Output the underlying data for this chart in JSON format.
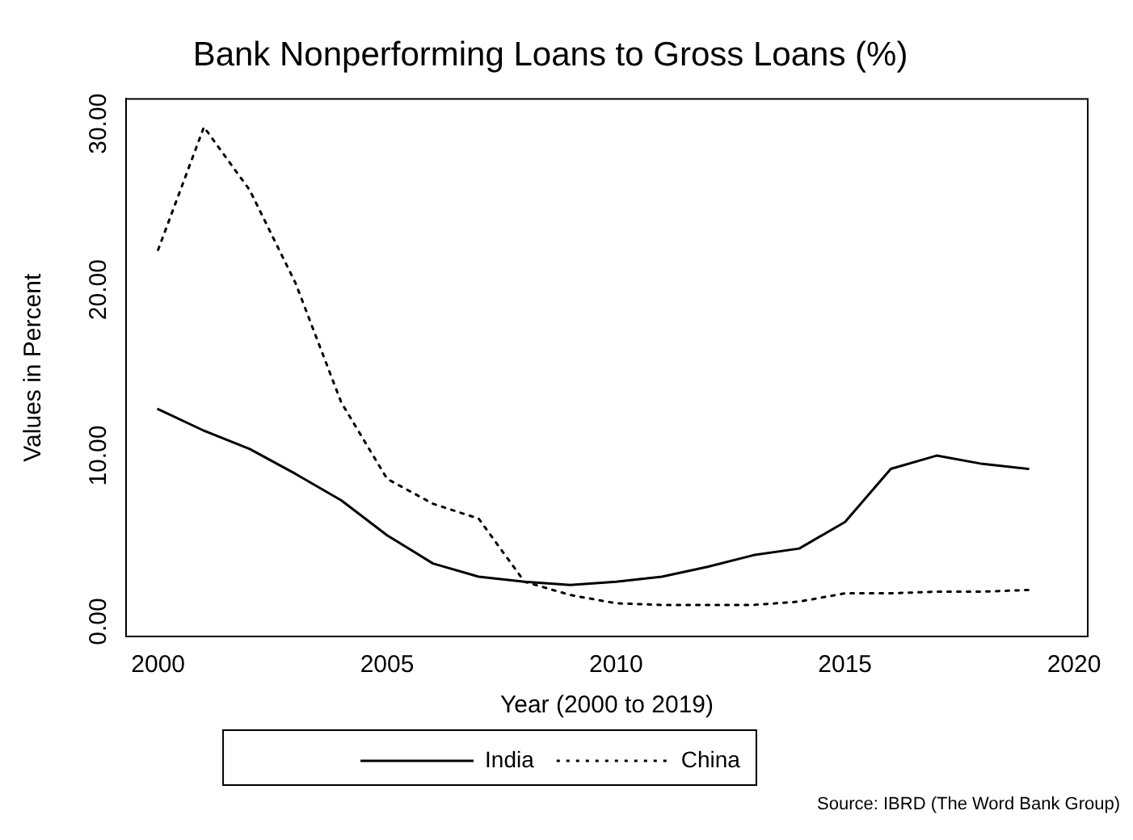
{
  "chart_data": {
    "type": "line",
    "title": "Bank Nonperforming Loans to Gross Loans (%)",
    "xlabel": "Year (2000 to 2019)",
    "ylabel": "Values in Percent",
    "x": [
      2000,
      2001,
      2002,
      2003,
      2004,
      2005,
      2006,
      2007,
      2008,
      2009,
      2010,
      2011,
      2012,
      2013,
      2014,
      2015,
      2016,
      2017,
      2018,
      2019
    ],
    "series": [
      {
        "name": "India",
        "color": "#000000",
        "line_style": "solid",
        "values": [
          12.8,
          11.5,
          10.4,
          8.9,
          7.3,
          5.2,
          3.5,
          2.7,
          2.4,
          2.2,
          2.4,
          2.7,
          3.3,
          4.0,
          4.4,
          6.0,
          9.2,
          10.0,
          9.5,
          9.2
        ]
      },
      {
        "name": "China",
        "color": "#000000",
        "line_style": "dotted",
        "values": [
          22.4,
          29.8,
          26.0,
          20.4,
          13.2,
          8.6,
          7.1,
          6.2,
          2.4,
          1.6,
          1.1,
          1.0,
          1.0,
          1.0,
          1.2,
          1.7,
          1.7,
          1.8,
          1.8,
          1.9
        ]
      }
    ],
    "xlim": [
      1999.3,
      2020.3
    ],
    "xticks": [
      2000,
      2005,
      2010,
      2015,
      2020
    ],
    "ylim": [
      -0.9,
      31.5
    ],
    "yticks": [
      {
        "value": 0,
        "label": "0.00"
      },
      {
        "value": 10,
        "label": "10.00"
      },
      {
        "value": 20,
        "label": "20.00"
      },
      {
        "value": 30,
        "label": "30.00"
      }
    ],
    "grid": false,
    "legend": "bottom",
    "marker": "none",
    "annotations": [
      "Source: IBRD (The Word Bank Group)"
    ]
  }
}
